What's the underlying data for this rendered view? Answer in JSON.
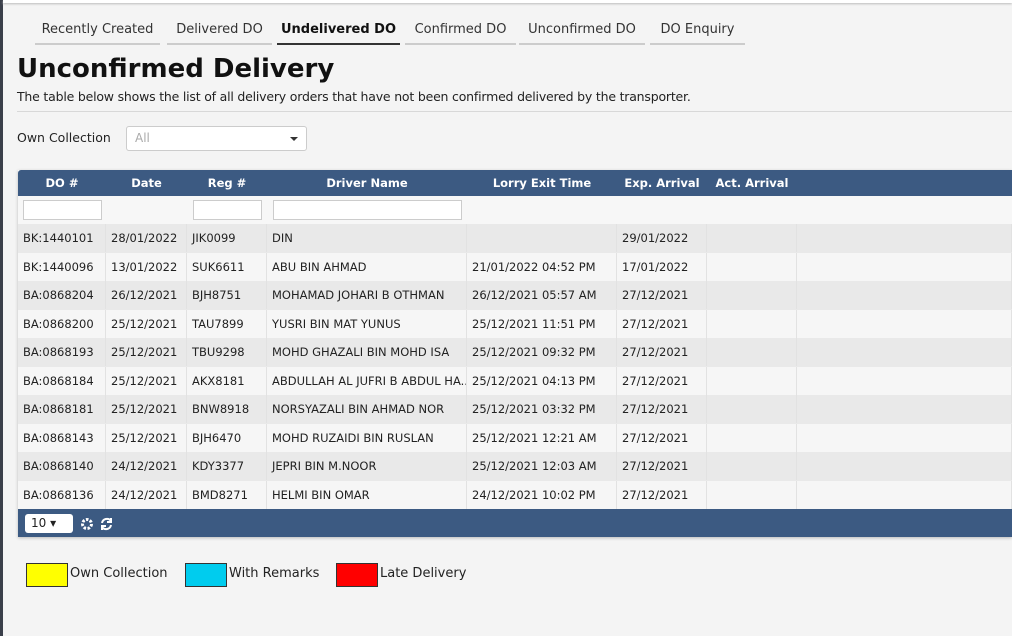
{
  "tabs": [
    "Recently Created",
    "Delivered DO",
    "Undelivered DO",
    "Confirmed DO",
    "Unconfirmed DO",
    "DO Enquiry"
  ],
  "header": {
    "title": "Unconfirmed Delivery",
    "subtitle": "The table below shows the list of all delivery orders that have not been confirmed delivered by the transporter."
  },
  "filter": {
    "label": "Own Collection",
    "placeholder": "All"
  },
  "table": {
    "columns": [
      "DO #",
      "Date",
      "Reg #",
      "Driver Name",
      "Lorry Exit Time",
      "Exp. Arrival",
      "Act. Arrival"
    ],
    "rows": [
      [
        "BK:1440101",
        "28/01/2022",
        "JIK0099",
        "DIN",
        null,
        "29/01/2022"
      ],
      [
        "BK:1440096",
        "13/01/2022",
        "SUK6611",
        "ABU BIN AHMAD",
        "21/01/2022 04:52 PM",
        "17/01/2022"
      ],
      [
        "BA:0868204",
        "26/12/2021",
        "BJH8751",
        "MOHAMAD JOHARI B OTHMAN",
        "26/12/2021 05:57 AM",
        "27/12/2021"
      ],
      [
        "BA:0868200",
        "25/12/2021",
        "TAU7899",
        "YUSRI BIN MAT YUNUS",
        "25/12/2021 11:51 PM",
        "27/12/2021"
      ],
      [
        "BA:0868193",
        "25/12/2021",
        "TBU9298",
        "MOHD GHAZALI BIN MOHD ISA",
        "25/12/2021 09:32 PM",
        "27/12/2021"
      ],
      [
        "BA:0868184",
        "25/12/2021",
        "AKX8181",
        "ABDULLAH AL JUFRI B ABDUL HA...",
        "25/12/2021 04:13 PM",
        "27/12/2021"
      ],
      [
        "BA:0868181",
        "25/12/2021",
        "BNW8918",
        "NORSYAZALI BIN AHMAD NOR",
        "25/12/2021 03:32 PM",
        "27/12/2021"
      ],
      [
        "BA:0868143",
        "25/12/2021",
        "BJH6470",
        "MOHD RUZAIDI BIN RUSLAN",
        "25/12/2021 12:21 AM",
        "27/12/2021"
      ],
      [
        "BA:0868140",
        "24/12/2021",
        "KDY3377",
        "JEPRI BIN M.NOOR",
        "25/12/2021 12:03 AM",
        "27/12/2021"
      ],
      [
        "BA:0868136",
        "24/12/2021",
        "BMD8271",
        "HELMI BIN OMAR",
        "24/12/2021 10:02 PM",
        "27/12/2021"
      ]
    ],
    "page_size": "10"
  },
  "legend": [
    {
      "label": "Own Collection",
      "color": "#ffff00"
    },
    {
      "label": "With Remarks",
      "color": "#00ccee"
    },
    {
      "label": "Late Delivery",
      "color": "#ff0000"
    }
  ]
}
